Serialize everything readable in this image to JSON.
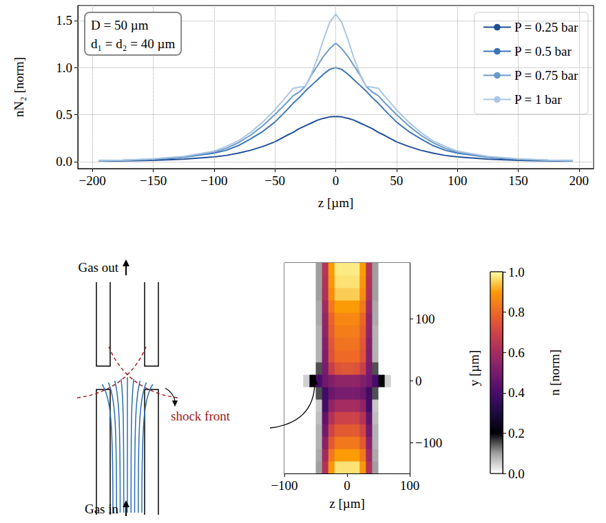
{
  "chart_data": [
    {
      "type": "line",
      "xlabel": "z [µm]",
      "ylabel": "nN₂ [norm]",
      "annotations": [
        "D = 50 µm",
        "d₁ = d₂ = 40 µm"
      ],
      "xlim": [
        -212,
        212
      ],
      "ylim": [
        -0.075,
        1.66
      ],
      "xticks": [
        {
          "value": -200,
          "label": "−200"
        },
        {
          "value": -150,
          "label": "−150"
        },
        {
          "value": -100,
          "label": "−100"
        },
        {
          "value": -50,
          "label": "−50"
        },
        0,
        50,
        100,
        150,
        200
      ],
      "yticks": [
        {
          "value": 0,
          "label": "0.0"
        },
        {
          "value": 0.5,
          "label": "0.5"
        },
        {
          "value": 1,
          "label": "1.0"
        },
        {
          "value": 1.5,
          "label": "1.5"
        }
      ],
      "grid": true,
      "legend": "upper right",
      "x": [
        -195,
        -175,
        -150,
        -125,
        -100,
        -90,
        -80,
        -70,
        -60,
        -50,
        -40,
        -35,
        -30,
        -25,
        -20,
        -15,
        -10,
        -5,
        0,
        5,
        10,
        15,
        20,
        25,
        30,
        35,
        40,
        50,
        60,
        70,
        80,
        90,
        100,
        125,
        150,
        175,
        195
      ],
      "series": [
        {
          "name": "P = 0.25 bar",
          "color": "#1f4e96",
          "values": [
            0.005,
            0.008,
            0.012,
            0.025,
            0.05,
            0.065,
            0.09,
            0.12,
            0.16,
            0.21,
            0.28,
            0.31,
            0.35,
            0.38,
            0.41,
            0.44,
            0.46,
            0.475,
            0.48,
            0.475,
            0.46,
            0.44,
            0.41,
            0.38,
            0.35,
            0.31,
            0.28,
            0.21,
            0.16,
            0.12,
            0.09,
            0.065,
            0.05,
            0.025,
            0.012,
            0.008,
            0.005
          ]
        },
        {
          "name": "P = 0.5 bar",
          "color": "#3a75b5",
          "values": [
            0.008,
            0.012,
            0.02,
            0.045,
            0.09,
            0.12,
            0.17,
            0.24,
            0.32,
            0.42,
            0.55,
            0.62,
            0.68,
            0.75,
            0.81,
            0.87,
            0.93,
            0.98,
            1.0,
            0.98,
            0.93,
            0.87,
            0.81,
            0.75,
            0.68,
            0.62,
            0.55,
            0.42,
            0.32,
            0.24,
            0.17,
            0.12,
            0.09,
            0.045,
            0.02,
            0.012,
            0.008
          ]
        },
        {
          "name": "P = 0.75 bar",
          "color": "#6b9bcb",
          "values": [
            0.01,
            0.015,
            0.025,
            0.05,
            0.1,
            0.14,
            0.2,
            0.28,
            0.38,
            0.5,
            0.63,
            0.7,
            0.74,
            0.8,
            0.92,
            1.02,
            1.12,
            1.2,
            1.26,
            1.2,
            1.12,
            1.02,
            0.92,
            0.8,
            0.74,
            0.7,
            0.63,
            0.5,
            0.38,
            0.28,
            0.2,
            0.14,
            0.1,
            0.05,
            0.025,
            0.015,
            0.01
          ]
        },
        {
          "name": "P = 1 bar",
          "color": "#a9c6e3",
          "values": [
            0.01,
            0.015,
            0.03,
            0.055,
            0.11,
            0.16,
            0.22,
            0.31,
            0.42,
            0.55,
            0.7,
            0.78,
            0.79,
            0.8,
            0.93,
            1.1,
            1.3,
            1.48,
            1.57,
            1.48,
            1.3,
            1.1,
            0.93,
            0.8,
            0.79,
            0.78,
            0.7,
            0.55,
            0.42,
            0.31,
            0.22,
            0.16,
            0.11,
            0.055,
            0.03,
            0.015,
            0.01
          ]
        }
      ]
    },
    {
      "type": "heatmap",
      "xlabel": "z [µm]",
      "ylabel": "y [µm]",
      "xlim": [
        -100,
        100
      ],
      "ylim": [
        -150,
        190
      ],
      "xticks": [
        {
          "value": -100,
          "label": "−100"
        },
        0,
        100
      ],
      "yticks": [
        {
          "value": -100,
          "label": "−100"
        },
        0,
        100
      ],
      "x": [
        -95,
        -85,
        -75,
        -65,
        -55,
        -45,
        -35,
        -25,
        -15,
        -5,
        5,
        15,
        25,
        35,
        45,
        55,
        65,
        75,
        85,
        95
      ],
      "y": [
        -140,
        -120,
        -100,
        -80,
        -60,
        -40,
        -20,
        0,
        20,
        40,
        60,
        80,
        100,
        120,
        140,
        160,
        180
      ],
      "cells": [
        [
          0,
          0,
          0,
          0,
          0,
          0.1,
          0.63,
          0.89,
          0.97,
          0.97,
          0.97,
          0.97,
          0.89,
          0.63,
          0.1,
          0,
          0,
          0,
          0,
          0
        ],
        [
          0,
          0,
          0,
          0,
          0,
          0.09,
          0.59,
          0.83,
          0.9,
          0.9,
          0.9,
          0.9,
          0.83,
          0.59,
          0.09,
          0,
          0,
          0,
          0,
          0
        ],
        [
          0,
          0,
          0,
          0,
          0,
          0.08,
          0.54,
          0.76,
          0.83,
          0.83,
          0.83,
          0.83,
          0.76,
          0.54,
          0.08,
          0,
          0,
          0,
          0,
          0
        ],
        [
          0,
          0,
          0,
          0,
          0,
          0.08,
          0.49,
          0.7,
          0.76,
          0.76,
          0.76,
          0.76,
          0.7,
          0.49,
          0.08,
          0,
          0,
          0,
          0,
          0
        ],
        [
          0,
          0,
          0,
          0,
          0,
          0.07,
          0.45,
          0.63,
          0.69,
          0.69,
          0.69,
          0.69,
          0.63,
          0.45,
          0.07,
          0,
          0,
          0,
          0,
          0
        ],
        [
          0,
          0,
          0,
          0,
          0,
          0.06,
          0.39,
          0.55,
          0.6,
          0.6,
          0.6,
          0.6,
          0.55,
          0.39,
          0.06,
          0,
          0,
          0,
          0,
          0
        ],
        [
          0,
          0,
          0,
          0,
          0,
          0.15,
          0.38,
          0.47,
          0.5,
          0.5,
          0.5,
          0.5,
          0.47,
          0.38,
          0.15,
          0,
          0,
          0,
          0,
          0
        ],
        [
          0,
          0,
          0,
          0.05,
          0.2,
          0.4,
          0.48,
          0.52,
          0.55,
          0.55,
          0.55,
          0.55,
          0.52,
          0.48,
          0.4,
          0.2,
          0.05,
          0,
          0,
          0
        ],
        [
          0,
          0,
          0,
          0,
          0,
          0.15,
          0.5,
          0.68,
          0.74,
          0.75,
          0.75,
          0.74,
          0.68,
          0.5,
          0.15,
          0,
          0,
          0,
          0,
          0
        ],
        [
          0,
          0,
          0,
          0,
          0,
          0.08,
          0.52,
          0.74,
          0.8,
          0.8,
          0.8,
          0.8,
          0.74,
          0.52,
          0.08,
          0,
          0,
          0,
          0,
          0
        ],
        [
          0,
          0,
          0,
          0,
          0,
          0.08,
          0.53,
          0.75,
          0.82,
          0.82,
          0.82,
          0.82,
          0.75,
          0.53,
          0.08,
          0,
          0,
          0,
          0,
          0
        ],
        [
          0,
          0,
          0,
          0,
          0,
          0.08,
          0.55,
          0.77,
          0.84,
          0.84,
          0.84,
          0.84,
          0.77,
          0.55,
          0.08,
          0,
          0,
          0,
          0,
          0
        ],
        [
          0,
          0,
          0,
          0,
          0,
          0.09,
          0.56,
          0.79,
          0.86,
          0.86,
          0.86,
          0.86,
          0.79,
          0.56,
          0.09,
          0,
          0,
          0,
          0,
          0
        ],
        [
          0,
          0,
          0,
          0,
          0,
          0.09,
          0.59,
          0.83,
          0.9,
          0.9,
          0.9,
          0.9,
          0.83,
          0.59,
          0.09,
          0,
          0,
          0,
          0,
          0
        ],
        [
          0,
          0,
          0,
          0,
          0,
          0.1,
          0.62,
          0.87,
          0.95,
          0.95,
          0.95,
          0.95,
          0.87,
          0.62,
          0.1,
          0,
          0,
          0,
          0,
          0
        ],
        [
          0,
          0,
          0,
          0,
          0,
          0.1,
          0.63,
          0.89,
          0.97,
          0.97,
          0.97,
          0.97,
          0.89,
          0.63,
          0.1,
          0,
          0,
          0,
          0,
          0
        ],
        [
          0,
          0,
          0,
          0,
          0,
          0.1,
          0.64,
          0.9,
          0.98,
          0.98,
          0.98,
          0.98,
          0.9,
          0.64,
          0.1,
          0,
          0,
          0,
          0,
          0
        ]
      ],
      "colorbar": {
        "label": "n [norm]",
        "range": [
          0,
          1
        ],
        "ticks": [
          {
            "value": 0,
            "label": "0.0"
          },
          {
            "value": 0.2,
            "label": "0.2"
          },
          {
            "value": 0.4,
            "label": "0.4"
          },
          {
            "value": 0.6,
            "label": "0.6"
          },
          {
            "value": 0.8,
            "label": "0.8"
          },
          {
            "value": 1,
            "label": "1.0"
          }
        ]
      }
    }
  ],
  "diagram": {
    "labels": {
      "gas_out": "Gas out",
      "gas_in": "Gas in",
      "shock_front": "shock front"
    }
  }
}
